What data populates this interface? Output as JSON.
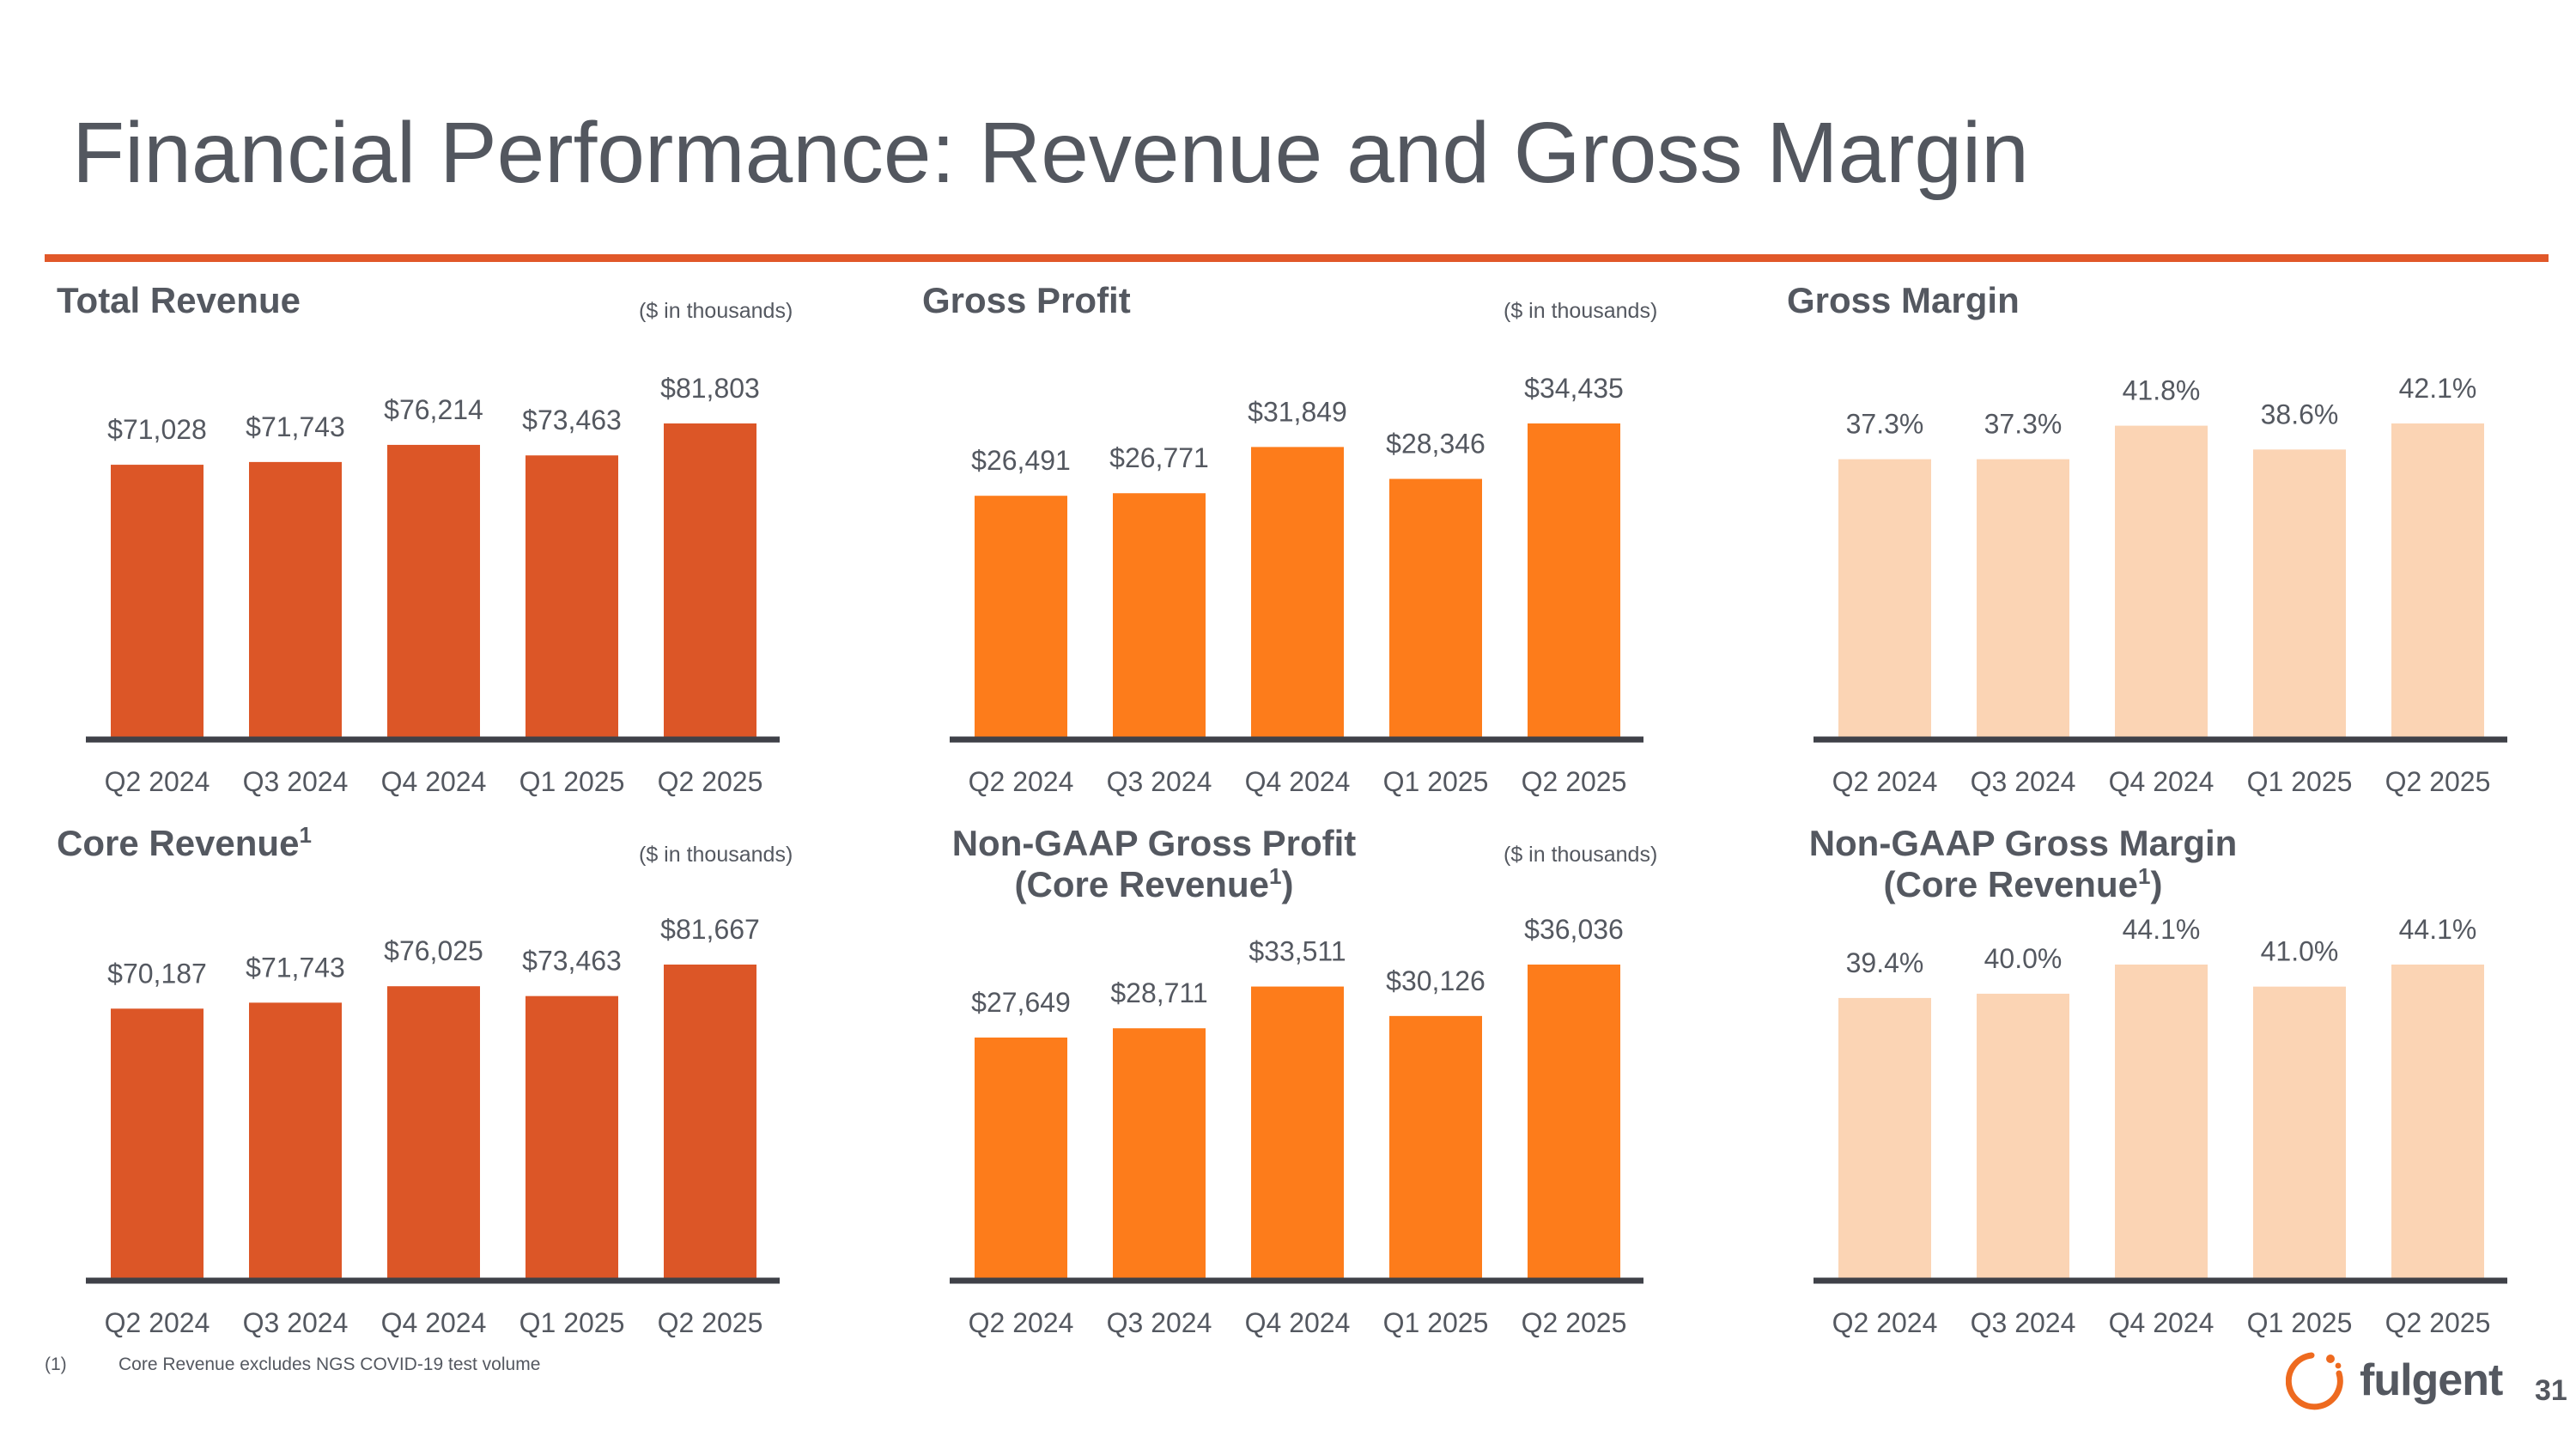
{
  "page": {
    "title": "Financial Performance: Revenue and Gross Margin",
    "accent_color": "#e15829",
    "page_number": "31",
    "footnote_marker": "(1)",
    "footnote_text": "Core Revenue excludes NGS COVID-19 test volume",
    "logo_text": "fulgent"
  },
  "panels": {
    "total_revenue": {
      "title": "Total Revenue",
      "unit_note": "($ in thousands)"
    },
    "gross_profit": {
      "title": "Gross Profit",
      "unit_note": "($ in thousands)"
    },
    "gross_margin": {
      "title": "Gross Margin"
    },
    "core_revenue": {
      "title": "Core Revenue",
      "superscript": "1",
      "unit_note": "($ in thousands)"
    },
    "non_gaap_gross_profit": {
      "title_line1": "Non-GAAP Gross Profit",
      "title_line2": "(Core Revenue",
      "title_line2_end": ")",
      "superscript": "1",
      "unit_note": "($ in thousands)"
    },
    "non_gaap_gross_margin": {
      "title_line1": "Non-GAAP Gross Margin",
      "title_line2": "(Core Revenue",
      "title_line2_end": ")",
      "superscript": "1"
    }
  },
  "chart_data": [
    {
      "type": "bar",
      "title": "Total Revenue",
      "ylabel": "$ in thousands",
      "ylim": [
        0,
        81803
      ],
      "categories": [
        "Q2 2024",
        "Q3 2024",
        "Q4 2024",
        "Q1 2025",
        "Q2 2025"
      ],
      "values": [
        71028,
        71743,
        76214,
        73463,
        81803
      ],
      "labels": [
        "$71,028",
        "$71,743",
        "$76,214",
        "$73,463",
        "$81,803"
      ],
      "color": "#dc5627"
    },
    {
      "type": "bar",
      "title": "Gross Profit",
      "ylabel": "$ in thousands",
      "ylim": [
        0,
        34435
      ],
      "categories": [
        "Q2 2024",
        "Q3 2024",
        "Q4 2024",
        "Q1 2025",
        "Q2 2025"
      ],
      "values": [
        26491,
        26771,
        31849,
        28346,
        34435
      ],
      "labels": [
        "$26,491",
        "$26,771",
        "$31,849",
        "$28,346",
        "$34,435"
      ],
      "color": "#fd7c1b"
    },
    {
      "type": "bar",
      "title": "Gross Margin",
      "ylabel": "%",
      "ylim": [
        0,
        42.1
      ],
      "categories": [
        "Q2 2024",
        "Q3 2024",
        "Q4 2024",
        "Q1 2025",
        "Q2 2025"
      ],
      "values": [
        37.3,
        37.3,
        41.8,
        38.6,
        42.1
      ],
      "labels": [
        "37.3%",
        "37.3%",
        "41.8%",
        "38.6%",
        "42.1%"
      ],
      "color": "#fbd4b4"
    },
    {
      "type": "bar",
      "title": "Core Revenue",
      "ylabel": "$ in thousands",
      "ylim": [
        0,
        81667
      ],
      "categories": [
        "Q2 2024",
        "Q3 2024",
        "Q4 2024",
        "Q1 2025",
        "Q2 2025"
      ],
      "values": [
        70187,
        71743,
        76025,
        73463,
        81667
      ],
      "labels": [
        "$70,187",
        "$71,743",
        "$76,025",
        "$73,463",
        "$81,667"
      ],
      "color": "#dc5627"
    },
    {
      "type": "bar",
      "title": "Non-GAAP Gross Profit (Core Revenue)",
      "ylabel": "$ in thousands",
      "ylim": [
        0,
        36036
      ],
      "categories": [
        "Q2 2024",
        "Q3 2024",
        "Q4 2024",
        "Q1 2025",
        "Q2 2025"
      ],
      "values": [
        27649,
        28711,
        33511,
        30126,
        36036
      ],
      "labels": [
        "$27,649",
        "$28,711",
        "$33,511",
        "$30,126",
        "$36,036"
      ],
      "color": "#fd7c1b"
    },
    {
      "type": "bar",
      "title": "Non-GAAP Gross Margin (Core Revenue)",
      "ylabel": "%",
      "ylim": [
        0,
        44.1
      ],
      "categories": [
        "Q2 2024",
        "Q3 2024",
        "Q4 2024",
        "Q1 2025",
        "Q2 2025"
      ],
      "values": [
        39.4,
        40.0,
        44.1,
        41.0,
        44.1
      ],
      "labels": [
        "39.4%",
        "40.0%",
        "44.1%",
        "41.0%",
        "44.1%"
      ],
      "color": "#fbd4b4"
    }
  ]
}
